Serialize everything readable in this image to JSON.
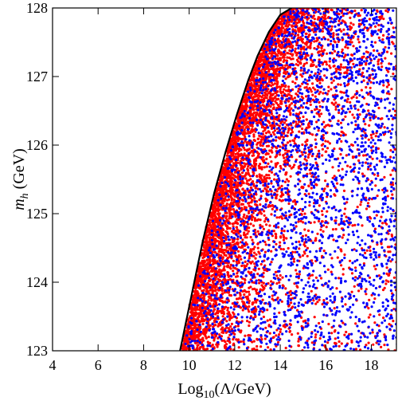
{
  "chart_data": {
    "type": "scatter",
    "title": "",
    "xlabel": "Log10(Λ/GeV)",
    "xlabel_parts": {
      "base": "Log",
      "sub": "10",
      "rest": "(Λ/GeV)"
    },
    "ylabel": "m_h (GeV)",
    "ylabel_parts": {
      "var": "m",
      "sub": "h",
      "rest": " (GeV)"
    },
    "xlim": [
      4,
      19.1
    ],
    "ylim": [
      123,
      128
    ],
    "xticks": [
      4,
      6,
      8,
      10,
      12,
      14,
      16,
      18
    ],
    "yticks": [
      123,
      124,
      125,
      126,
      127,
      128
    ],
    "grid": false,
    "legend": "none",
    "boundary_curve": {
      "color": "#000000",
      "x": [
        9.6,
        10.1,
        10.6,
        11.1,
        11.6,
        12.1,
        12.6,
        13.0,
        13.5,
        14.0,
        14.5
      ],
      "y": [
        123.0,
        123.8,
        124.6,
        125.3,
        125.9,
        126.45,
        126.95,
        127.3,
        127.65,
        127.9,
        128.0
      ]
    },
    "series": [
      {
        "color": "#ff0000",
        "marker_note": "dense near boundary, sparser at larger x"
      },
      {
        "color": "#0000ff",
        "marker_note": "spread throughout allowed region"
      }
    ]
  }
}
